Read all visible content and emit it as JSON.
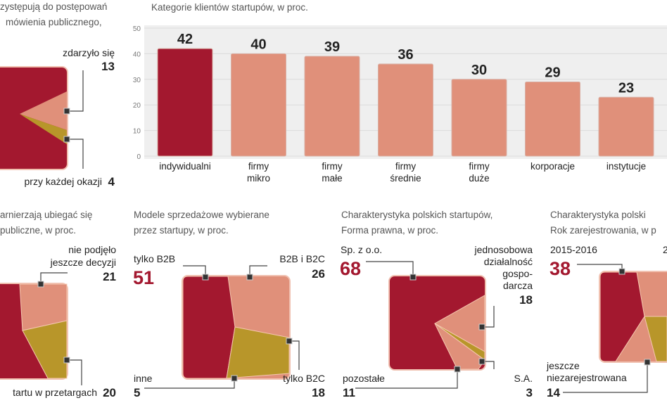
{
  "colors": {
    "dark_red": "#a3182f",
    "salmon": "#e0907a",
    "gold": "#b8962a",
    "plot_bg": "#efefef"
  },
  "panel1": {
    "title": [
      "zystępują do postępowań",
      "mówienia publicznego,"
    ],
    "labels": {
      "happened": "zdarzyło się",
      "happened_value": "13",
      "every_time": "przy każdej okazji",
      "every_time_value": "4"
    }
  },
  "chart_data": [
    {
      "type": "bar",
      "title": "Kategorie klientów startupów, w proc.",
      "categories": [
        [
          "indywidualni"
        ],
        [
          "firmy",
          "mikro"
        ],
        [
          "firmy",
          "małe"
        ],
        [
          "firmy",
          "średnie"
        ],
        [
          "firmy",
          "duże"
        ],
        [
          "korporacje"
        ],
        [
          "instytucje"
        ]
      ],
      "values": [
        42,
        40,
        39,
        36,
        30,
        29,
        23
      ],
      "yticks": [
        0,
        10,
        20,
        30,
        40,
        50
      ],
      "ylim": [
        0,
        50
      ],
      "grid": true,
      "highlight_index": 0
    },
    {
      "type": "pie",
      "title": [
        "arnierzają ubiegać się",
        "publiczne, w proc."
      ],
      "slices": [
        {
          "label": [
            "nie podjęło",
            "jeszcze decyzji"
          ],
          "value": 21
        },
        {
          "label": [
            "tartu w przetargach"
          ],
          "value": 20
        }
      ]
    },
    {
      "type": "pie",
      "title": [
        "Modele sprzedażowe wybierane",
        "przez startupy, w proc."
      ],
      "slices": [
        {
          "label": [
            "tylko B2B"
          ],
          "value": 51
        },
        {
          "label": [
            "B2B i B2C"
          ],
          "value": 26
        },
        {
          "label": [
            "tylko B2C"
          ],
          "value": 18
        },
        {
          "label": [
            "inne"
          ],
          "value": 5
        }
      ]
    },
    {
      "type": "pie",
      "title": [
        "Charakterystyka polskich startupów,",
        "Forma prawna, w proc."
      ],
      "slices": [
        {
          "label": [
            "Sp. z o.o."
          ],
          "value": 68
        },
        {
          "label": [
            "jednosobowa",
            "działalność",
            "gospo-",
            "darcza"
          ],
          "value": 18
        },
        {
          "label": [
            "S.A."
          ],
          "value": 3
        },
        {
          "label": [
            "pozostałe"
          ],
          "value": 11
        }
      ]
    },
    {
      "type": "pie",
      "title": [
        "Charakterystyka polski",
        "Rok zarejestrowania, w p"
      ],
      "slices": [
        {
          "label": [
            "2015-2016"
          ],
          "value": 38
        },
        {
          "label": [
            "jeszcze",
            "niezarejestrowana"
          ],
          "value": 14
        },
        {
          "label": [
            "2"
          ],
          "value": null
        }
      ]
    }
  ]
}
